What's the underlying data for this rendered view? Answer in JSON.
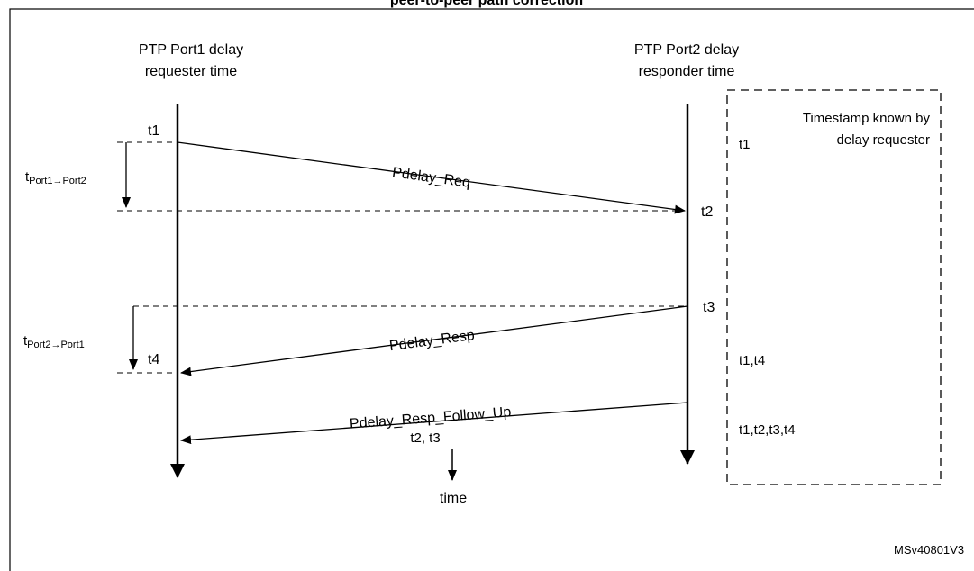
{
  "title": "peer-to-peer path correction",
  "port1": {
    "line1": "PTP Port1 delay",
    "line2": "requester time"
  },
  "port2": {
    "line1": "PTP Port2 delay",
    "line2": "responder time"
  },
  "box": {
    "line1": "Timestamp known by",
    "line2": "delay requester"
  },
  "timestamps": {
    "t1": "t1",
    "t2": "t2",
    "t3": "t3",
    "t4": "t4"
  },
  "known": {
    "row1": "t1",
    "row2": "t1,t4",
    "row3": "t1,t2,t3,t4"
  },
  "intervals": {
    "p1p2_base": "t",
    "p1p2_sub": "Port1→Port2",
    "p2p1_base": "t",
    "p2p1_sub": "Port2→Port1"
  },
  "messages": {
    "req": "Pdelay_Req",
    "resp": "Pdelay_Resp",
    "follow": "Pdelay_Resp_Follow_Up",
    "follow_payload": "t2, t3"
  },
  "time_label": "time",
  "figure_id": "MSv40801V3"
}
